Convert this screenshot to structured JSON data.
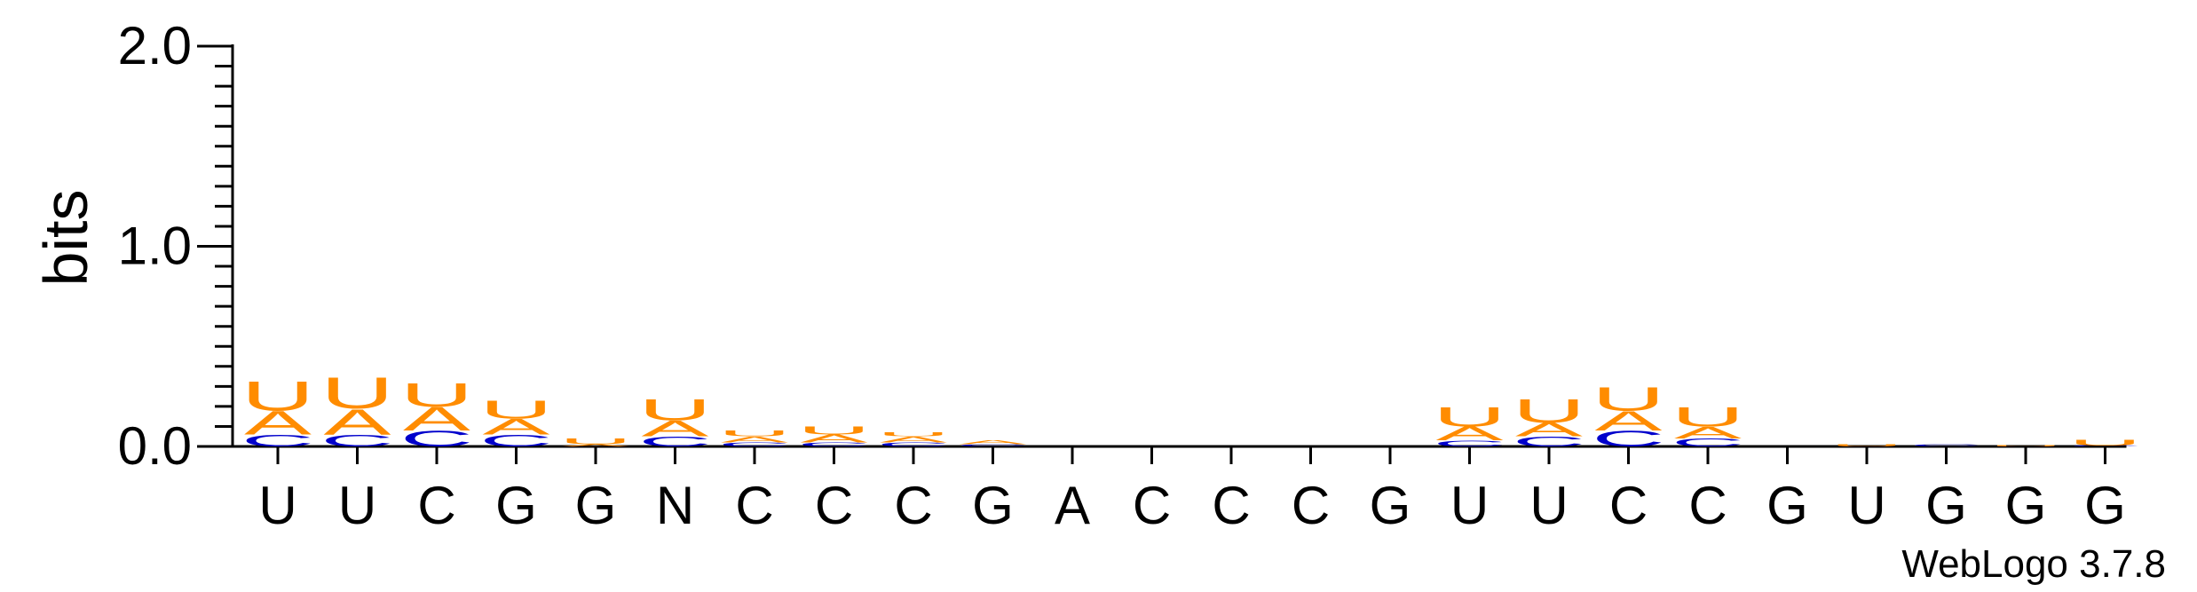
{
  "chart_data": {
    "type": "sequence-logo",
    "ylabel": "bits",
    "ylim": [
      0,
      2.0
    ],
    "yticks": [
      "0.0",
      "1.0",
      "2.0"
    ],
    "credit": "WebLogo 3.7.8",
    "colors": {
      "A": "#ff8c00",
      "U": "#ff8c00",
      "C": "#0000cc",
      "G": "#ff8c00"
    },
    "positions": [
      {
        "label": "U",
        "stack": [
          [
            "C",
            0.06
          ],
          [
            "A",
            0.12
          ],
          [
            "U",
            0.15
          ]
        ]
      },
      {
        "label": "U",
        "stack": [
          [
            "C",
            0.06
          ],
          [
            "A",
            0.13
          ],
          [
            "U",
            0.16
          ]
        ]
      },
      {
        "label": "C",
        "stack": [
          [
            "C",
            0.08
          ],
          [
            "A",
            0.12
          ],
          [
            "U",
            0.12
          ]
        ]
      },
      {
        "label": "G",
        "stack": [
          [
            "C",
            0.06
          ],
          [
            "A",
            0.08
          ],
          [
            "U",
            0.09
          ]
        ]
      },
      {
        "label": "G",
        "stack": [
          [
            "A",
            0.01
          ],
          [
            "U",
            0.03
          ]
        ]
      },
      {
        "label": "N",
        "stack": [
          [
            "C",
            0.05
          ],
          [
            "A",
            0.08
          ],
          [
            "U",
            0.11
          ]
        ]
      },
      {
        "label": "C",
        "stack": [
          [
            "C",
            0.02
          ],
          [
            "A",
            0.03
          ],
          [
            "U",
            0.03
          ]
        ]
      },
      {
        "label": "C",
        "stack": [
          [
            "C",
            0.02
          ],
          [
            "A",
            0.04
          ],
          [
            "U",
            0.04
          ]
        ]
      },
      {
        "label": "C",
        "stack": [
          [
            "C",
            0.02
          ],
          [
            "A",
            0.03
          ],
          [
            "U",
            0.02
          ]
        ]
      },
      {
        "label": "G",
        "stack": [
          [
            "C",
            0.01
          ],
          [
            "A",
            0.02
          ]
        ]
      },
      {
        "label": "A",
        "stack": []
      },
      {
        "label": "C",
        "stack": []
      },
      {
        "label": "C",
        "stack": []
      },
      {
        "label": "C",
        "stack": []
      },
      {
        "label": "G",
        "stack": []
      },
      {
        "label": "U",
        "stack": [
          [
            "C",
            0.03
          ],
          [
            "A",
            0.07
          ],
          [
            "U",
            0.1
          ]
        ]
      },
      {
        "label": "U",
        "stack": [
          [
            "C",
            0.05
          ],
          [
            "A",
            0.07
          ],
          [
            "U",
            0.12
          ]
        ]
      },
      {
        "label": "C",
        "stack": [
          [
            "C",
            0.08
          ],
          [
            "A",
            0.1
          ],
          [
            "U",
            0.12
          ]
        ]
      },
      {
        "label": "C",
        "stack": [
          [
            "C",
            0.04
          ],
          [
            "A",
            0.06
          ],
          [
            "U",
            0.1
          ]
        ]
      },
      {
        "label": "G",
        "stack": []
      },
      {
        "label": "U",
        "stack": [
          [
            "U",
            0.01
          ]
        ]
      },
      {
        "label": "G",
        "stack": [
          [
            "C",
            0.01
          ]
        ]
      },
      {
        "label": "G",
        "stack": [
          [
            "U",
            0.005
          ]
        ]
      },
      {
        "label": "G",
        "stack": [
          [
            "C",
            0.005
          ],
          [
            "U",
            0.03
          ]
        ]
      }
    ]
  }
}
